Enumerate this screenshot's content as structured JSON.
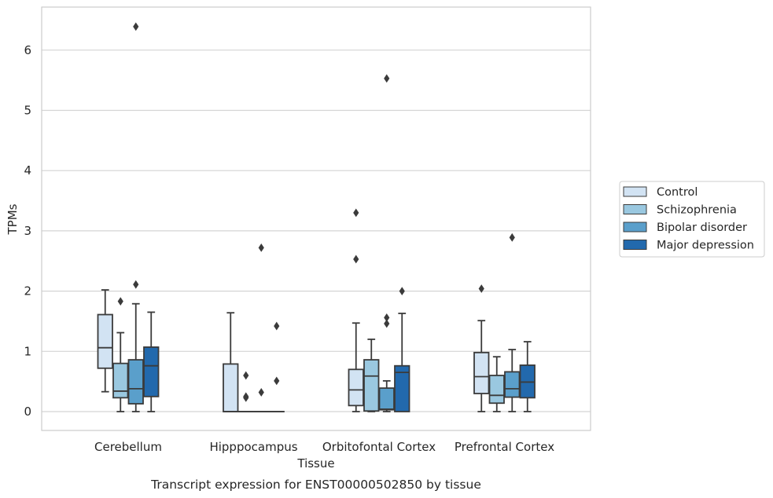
{
  "caption": "Transcript expression for ENST00000502850 by tissue",
  "chart_data": {
    "type": "box",
    "xlabel": "Tissue",
    "ylabel": "TPMs",
    "ylim": [
      -0.3,
      6.72
    ],
    "yticks": [
      0,
      1,
      2,
      3,
      4,
      5,
      6
    ],
    "grid": "horizontal",
    "legend_position": "right",
    "categories": [
      "Cerebellum",
      "Hipppocampus",
      "Orbitofontal Cortex",
      "Prefrontal Cortex"
    ],
    "series": [
      {
        "name": "Control",
        "color": "#d2e3f3",
        "boxes": [
          {
            "min": 0.33,
            "q1": 0.72,
            "median": 1.06,
            "q3": 1.61,
            "max": 2.02,
            "outliers": []
          },
          {
            "min": 0.0,
            "q1": 0.0,
            "median": 0.0,
            "q3": 0.79,
            "max": 1.64,
            "outliers": []
          },
          {
            "min": 0.0,
            "q1": 0.1,
            "median": 0.36,
            "q3": 0.7,
            "max": 1.47,
            "outliers": [
              2.53,
              3.3
            ]
          },
          {
            "min": 0.0,
            "q1": 0.3,
            "median": 0.58,
            "q3": 0.98,
            "max": 1.51,
            "outliers": [
              2.04
            ]
          }
        ]
      },
      {
        "name": "Schizophrenia",
        "color": "#9ac8e0",
        "boxes": [
          {
            "min": 0.0,
            "q1": 0.23,
            "median": 0.34,
            "q3": 0.8,
            "max": 1.31,
            "outliers": [
              1.83
            ]
          },
          {
            "min": 0.0,
            "q1": 0.0,
            "median": 0.0,
            "q3": 0.0,
            "max": 0.0,
            "outliers": [
              0.6,
              0.25,
              0.23
            ]
          },
          {
            "min": 0.0,
            "q1": 0.01,
            "median": 0.59,
            "q3": 0.86,
            "max": 1.2,
            "outliers": []
          },
          {
            "min": 0.0,
            "q1": 0.14,
            "median": 0.27,
            "q3": 0.6,
            "max": 0.91,
            "outliers": []
          }
        ]
      },
      {
        "name": "Bipolar disorder",
        "color": "#5a9fcb",
        "boxes": [
          {
            "min": 0.0,
            "q1": 0.13,
            "median": 0.38,
            "q3": 0.86,
            "max": 1.79,
            "outliers": [
              2.11,
              6.39
            ]
          },
          {
            "min": 0.0,
            "q1": 0.0,
            "median": 0.0,
            "q3": 0.0,
            "max": 0.0,
            "outliers": [
              0.32,
              2.72
            ]
          },
          {
            "min": 0.0,
            "q1": 0.03,
            "median": 0.04,
            "q3": 0.39,
            "max": 0.51,
            "outliers": [
              1.46,
              1.56,
              5.53
            ]
          },
          {
            "min": 0.0,
            "q1": 0.24,
            "median": 0.38,
            "q3": 0.66,
            "max": 1.03,
            "outliers": [
              2.89
            ]
          }
        ]
      },
      {
        "name": "Major depression",
        "color": "#2269ad",
        "boxes": [
          {
            "min": 0.0,
            "q1": 0.25,
            "median": 0.76,
            "q3": 1.07,
            "max": 1.65,
            "outliers": []
          },
          {
            "min": 0.0,
            "q1": 0.0,
            "median": 0.0,
            "q3": 0.0,
            "max": 0.0,
            "outliers": [
              0.51,
              1.42
            ]
          },
          {
            "min": 0.0,
            "q1": 0.0,
            "median": 0.65,
            "q3": 0.76,
            "max": 1.63,
            "outliers": [
              2.0
            ]
          },
          {
            "min": 0.0,
            "q1": 0.23,
            "median": 0.49,
            "q3": 0.77,
            "max": 1.16,
            "outliers": []
          }
        ]
      }
    ]
  }
}
